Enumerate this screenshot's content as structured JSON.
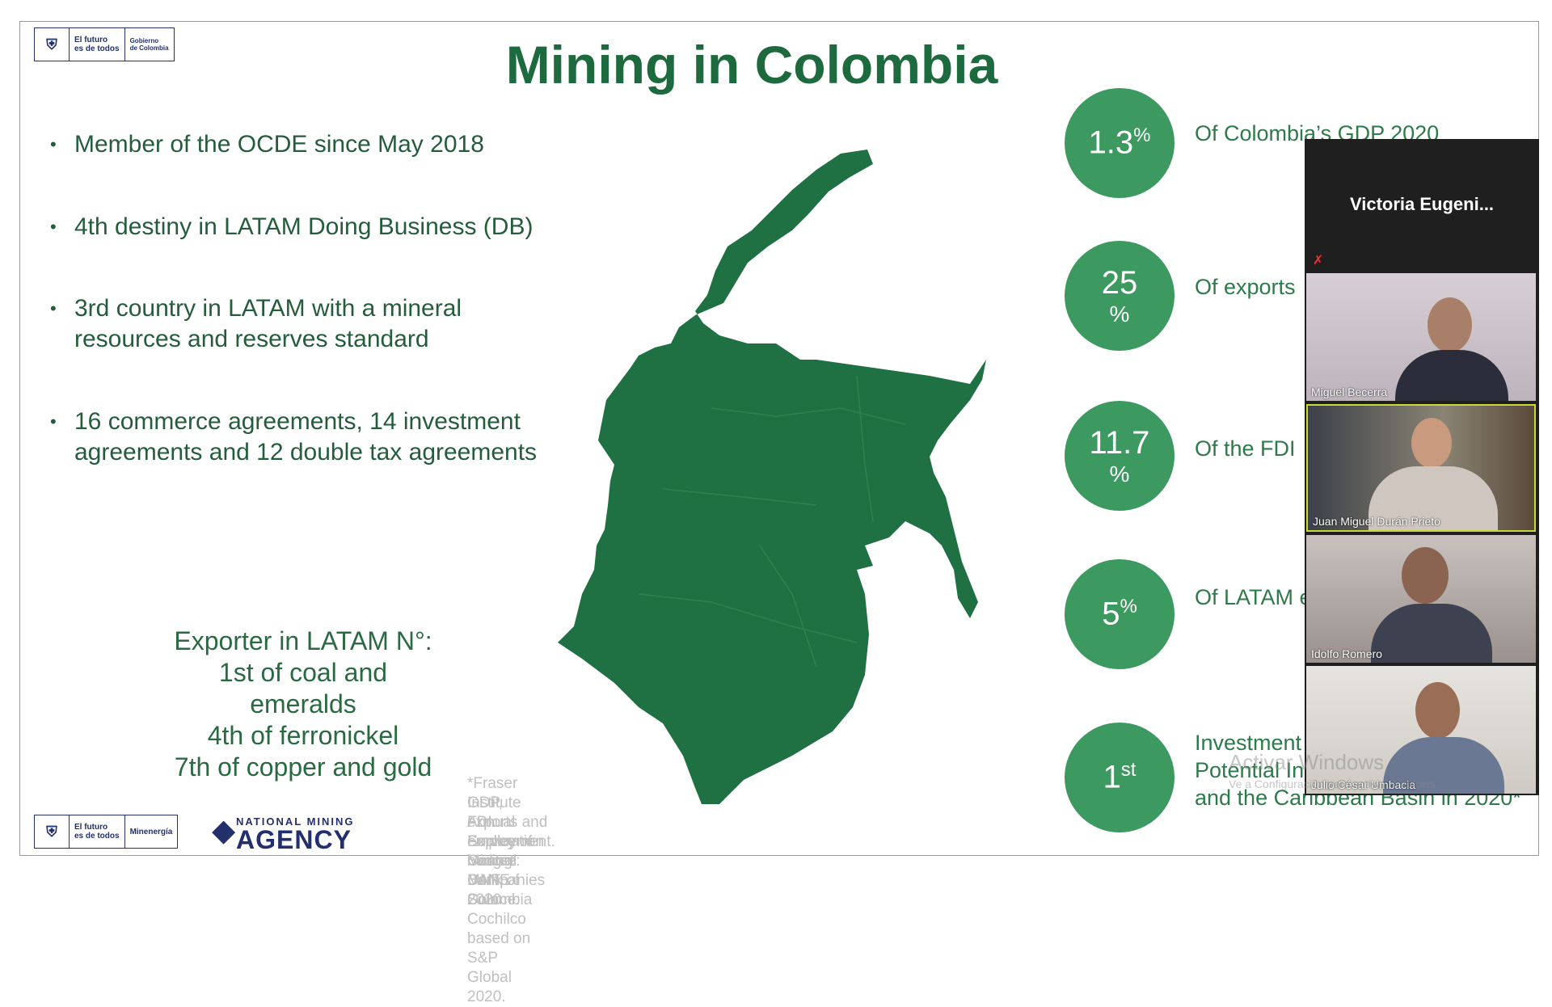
{
  "slide": {
    "title": "Mining in Colombia",
    "top_logo": {
      "line1": "El futuro",
      "line2": "es de todos",
      "gov1": "Gobierno",
      "gov2": "de Colombia"
    },
    "bullets": [
      "Member of the OCDE since May 2018",
      "4th destiny in LATAM Doing Business (DB)",
      "3rd country in LATAM with a mineral resources and reserves standard",
      "16 commerce agreements, 14 investment agreements and 12 double tax agreements"
    ],
    "exporter": [
      "Exporter in LATAM N°:",
      "1st of coal and",
      "emeralds",
      "4th of ferronickel",
      "7th of copper and gold"
    ],
    "stats": [
      {
        "value": "1.3",
        "suffix": "%",
        "text": "Of Colombia’s GDP 2020"
      },
      {
        "value": "25",
        "suffix": "%",
        "text": "Of exports"
      },
      {
        "value": "11.7",
        "suffix": "%",
        "text": "Of the FDI"
      },
      {
        "value": "5",
        "suffix": "%",
        "text": "Of LATAM exploration"
      },
      {
        "value": "1",
        "suffix": "st",
        "text": "Investment Index and Mineral Potential Index in Latin America and the Caribbean Basin in 2020*"
      }
    ],
    "footnotes": [
      "*Fraser Institute Annual Survey of Mining Companies 2020",
      "GDP, exports and employment.  Source: DANE",
      "FDI. Source: Central Bank of Colombia",
      "Exploration budget MNF. Source: Cochilco based on S&P Global 2020."
    ],
    "bottom_logos": {
      "line1": "El futuro",
      "line2": "es de todos",
      "ministry": "Minenergía",
      "agency_top": "NATIONAL MINING",
      "agency": "AGENCY"
    }
  },
  "video_panel": {
    "speaker": "Victoria Eugeni...",
    "participants": [
      "Miguel Becerra",
      "Juan Miguel Durán Prieto",
      "Idolfo Romero",
      "Julio César Umbacia"
    ]
  },
  "watermark": {
    "title": "Activar Windows",
    "text": "Ve a Configuración para activar Windows."
  }
}
